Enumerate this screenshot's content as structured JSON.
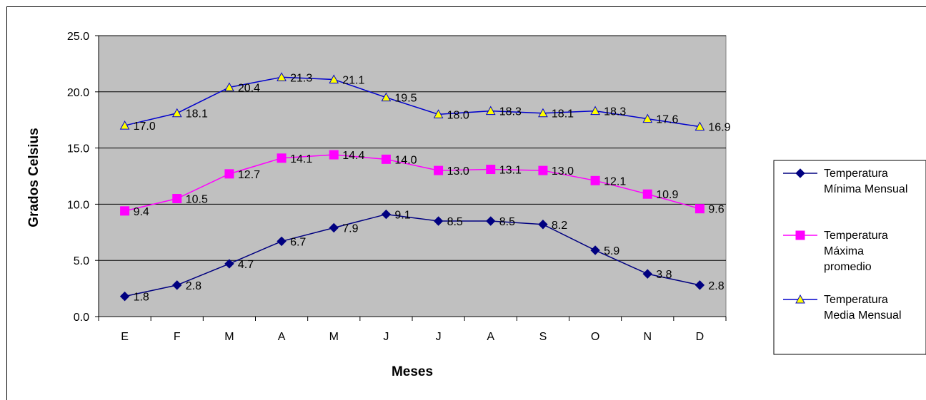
{
  "chart_data": {
    "type": "line",
    "xlabel": "Meses",
    "ylabel": "Grados Celsius",
    "categories": [
      "E",
      "F",
      "M",
      "A",
      "M",
      "J",
      "J",
      "A",
      "S",
      "O",
      "N",
      "D"
    ],
    "ylim": [
      0,
      25
    ],
    "yticks": [
      "0.0",
      "5.0",
      "10.0",
      "15.0",
      "20.0",
      "25.0"
    ],
    "grid": true,
    "legend_position": "right",
    "plot_background": "#c0c0c0",
    "series": [
      {
        "name": "Temperatura Mínima Mensual",
        "legend_lines": [
          "Temperatura",
          "Mínima Mensual"
        ],
        "color": "#000080",
        "marker": "diamond",
        "marker_fill": "#000080",
        "values": [
          1.8,
          2.8,
          4.7,
          6.7,
          7.9,
          9.1,
          8.5,
          8.5,
          8.2,
          5.9,
          3.8,
          2.8
        ],
        "labels": [
          "1.8",
          "2.8",
          "4.7",
          "6.7",
          "7.9",
          "9.1",
          "8.5",
          "8.5",
          "8.2",
          "5.9",
          "3.8",
          "2.8"
        ]
      },
      {
        "name": "Temperatura Máxima promedio",
        "legend_lines": [
          "Temperatura",
          "Máxima",
          "promedio"
        ],
        "color": "#ff00ff",
        "marker": "square",
        "marker_fill": "#ff00ff",
        "values": [
          9.4,
          10.5,
          12.7,
          14.1,
          14.4,
          14.0,
          13.0,
          13.1,
          13.0,
          12.1,
          10.9,
          9.6
        ],
        "labels": [
          "9.4",
          "10.5",
          "12.7",
          "14.1",
          "14.4",
          "14.0",
          "13.0",
          "13.1",
          "13.0",
          "12.1",
          "10.9",
          "9.6"
        ]
      },
      {
        "name": "Temperatura Media Mensual",
        "legend_lines": [
          "Temperatura",
          "Media Mensual"
        ],
        "color": "#0000cc",
        "marker": "triangle",
        "marker_fill": "#ffff00",
        "values": [
          17.0,
          18.1,
          20.4,
          21.3,
          21.1,
          19.5,
          18.0,
          18.3,
          18.1,
          18.3,
          17.6,
          16.9
        ],
        "labels": [
          "17.0",
          "18.1",
          "20.4",
          "21.3",
          "21.1",
          "19.5",
          "18.0",
          "18.3",
          "18.1",
          "18.3",
          "17.6",
          "16.9"
        ]
      }
    ]
  }
}
